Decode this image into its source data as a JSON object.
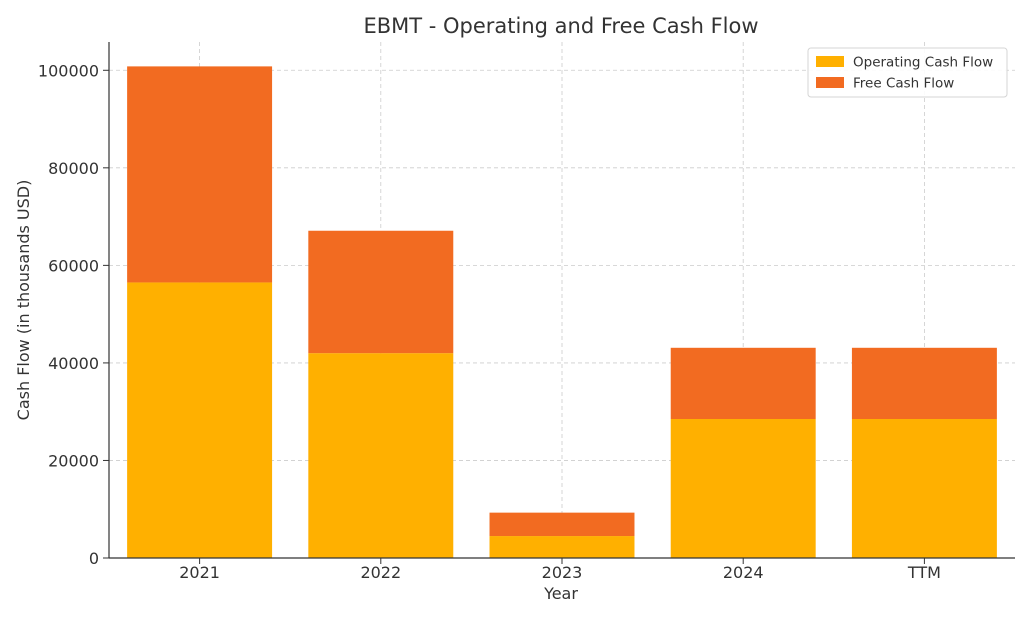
{
  "chart_data": {
    "type": "bar",
    "stacked": true,
    "title": "EBMT - Operating and Free Cash Flow",
    "xlabel": "Year",
    "ylabel": "Cash Flow (in thousands USD)",
    "categories": [
      "2021",
      "2022",
      "2023",
      "2024",
      "TTM"
    ],
    "series": [
      {
        "name": "Operating Cash Flow",
        "color": "#FFB000",
        "values": [
          56500,
          42000,
          4500,
          28500,
          28500
        ]
      },
      {
        "name": "Free Cash Flow",
        "color": "#F26B21",
        "values": [
          44300,
          25100,
          4800,
          14600,
          14600
        ]
      }
    ],
    "ylim": [
      0,
      105800
    ],
    "yticks": [
      0,
      20000,
      40000,
      60000,
      80000,
      100000
    ],
    "grid": true,
    "legend_position": "top-right"
  }
}
